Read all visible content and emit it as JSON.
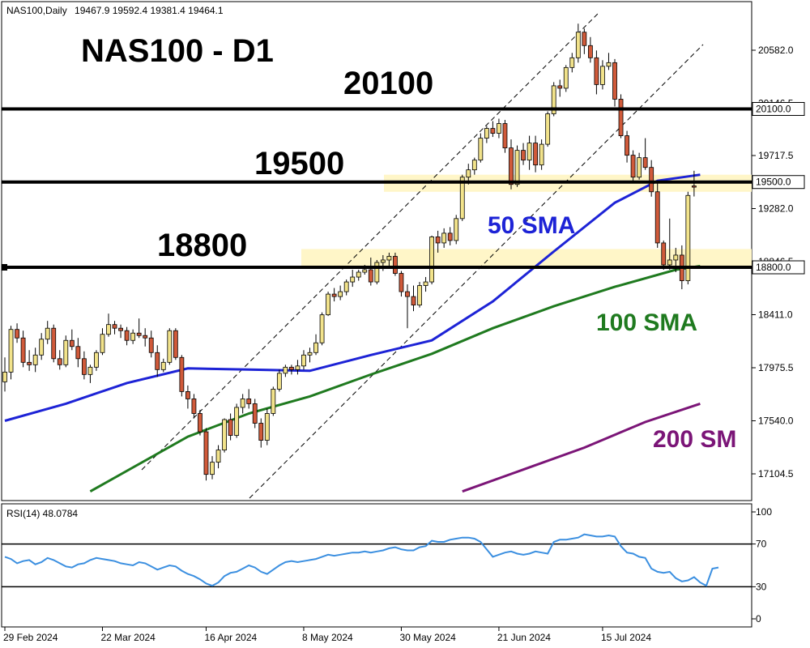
{
  "header": {
    "symbol_label": "NAS100,Daily",
    "ohlc_text": "19467.9 19592.4 19381.4 19464.1"
  },
  "annotations": {
    "title": "NAS100 - D1",
    "level_20100": "20100",
    "level_19500": "19500",
    "level_18800": "18800",
    "sma50_label": "50 SMA",
    "sma100_label": "100 SMA",
    "sma200_label": "200 SM"
  },
  "price_axis": {
    "ticks": [
      "20582.0",
      "20146.5",
      "19717.5",
      "19282.0",
      "18846.5",
      "18411.0",
      "17975.5",
      "17540.0",
      "17104.5"
    ],
    "level_boxes": [
      "20100.0",
      "19500.0",
      "18800.0"
    ]
  },
  "rsi_panel": {
    "label": "RSI(14) 48.0784",
    "ticks": [
      "100",
      "70",
      "30",
      "0"
    ]
  },
  "x_axis": {
    "labels": [
      "29 Feb 2024",
      "22 Mar 2024",
      "16 Apr 2024",
      "8 May 2024",
      "30 May 2024",
      "21 Jun 2024",
      "15 Jul 2024"
    ]
  },
  "colors": {
    "bull": "#f2e38b",
    "bear": "#d05a3a",
    "sma50": "#1d23d6",
    "sma100": "#1f7a1f",
    "sma200": "#7b1577",
    "rsi": "#3b8fe0",
    "zone": "#fff6c8"
  },
  "chart_data": [
    {
      "type": "candlestick",
      "title": "NAS100 - D1",
      "ylim": [
        16960,
        20800
      ],
      "horizontal_levels": [
        20100,
        19500,
        18800
      ],
      "support_resistance_zones": [
        [
          19420,
          19560
        ],
        [
          18800,
          18950
        ]
      ],
      "candles": [
        {
          "o": 17860,
          "h": 18060,
          "l": 17780,
          "c": 17940
        },
        {
          "o": 17940,
          "h": 18320,
          "l": 17880,
          "c": 18290
        },
        {
          "o": 18290,
          "h": 18340,
          "l": 18180,
          "c": 18220
        },
        {
          "o": 18220,
          "h": 18280,
          "l": 17980,
          "c": 18020
        },
        {
          "o": 18020,
          "h": 18120,
          "l": 17950,
          "c": 18000
        },
        {
          "o": 18000,
          "h": 18140,
          "l": 17940,
          "c": 18080
        },
        {
          "o": 18080,
          "h": 18260,
          "l": 18040,
          "c": 18210
        },
        {
          "o": 18210,
          "h": 18360,
          "l": 18170,
          "c": 18300
        },
        {
          "o": 18300,
          "h": 18330,
          "l": 18020,
          "c": 18050
        },
        {
          "o": 18050,
          "h": 18120,
          "l": 17960,
          "c": 18000
        },
        {
          "o": 18000,
          "h": 18240,
          "l": 17980,
          "c": 18200
        },
        {
          "o": 18200,
          "h": 18290,
          "l": 18120,
          "c": 18150
        },
        {
          "o": 18150,
          "h": 18220,
          "l": 17980,
          "c": 18050
        },
        {
          "o": 18050,
          "h": 18110,
          "l": 17880,
          "c": 17920
        },
        {
          "o": 17920,
          "h": 18000,
          "l": 17850,
          "c": 17980
        },
        {
          "o": 17980,
          "h": 18120,
          "l": 17950,
          "c": 18100
        },
        {
          "o": 18100,
          "h": 18300,
          "l": 18080,
          "c": 18250
        },
        {
          "o": 18250,
          "h": 18420,
          "l": 18230,
          "c": 18330
        },
        {
          "o": 18330,
          "h": 18360,
          "l": 18250,
          "c": 18300
        },
        {
          "o": 18300,
          "h": 18330,
          "l": 18220,
          "c": 18280
        },
        {
          "o": 18280,
          "h": 18310,
          "l": 18160,
          "c": 18200
        },
        {
          "o": 18200,
          "h": 18290,
          "l": 18170,
          "c": 18260
        },
        {
          "o": 18260,
          "h": 18380,
          "l": 18220,
          "c": 18240
        },
        {
          "o": 18240,
          "h": 18300,
          "l": 18150,
          "c": 18220
        },
        {
          "o": 18220,
          "h": 18280,
          "l": 18060,
          "c": 18100
        },
        {
          "o": 18100,
          "h": 18160,
          "l": 17900,
          "c": 17960
        },
        {
          "o": 17960,
          "h": 18050,
          "l": 17940,
          "c": 18020
        },
        {
          "o": 18020,
          "h": 18300,
          "l": 18000,
          "c": 18280
        },
        {
          "o": 18280,
          "h": 18300,
          "l": 18040,
          "c": 18060
        },
        {
          "o": 18060,
          "h": 18080,
          "l": 17740,
          "c": 17780
        },
        {
          "o": 17780,
          "h": 17830,
          "l": 17640,
          "c": 17720
        },
        {
          "o": 17720,
          "h": 17760,
          "l": 17560,
          "c": 17600
        },
        {
          "o": 17600,
          "h": 17630,
          "l": 17420,
          "c": 17450
        },
        {
          "o": 17450,
          "h": 17480,
          "l": 17050,
          "c": 17100
        },
        {
          "o": 17100,
          "h": 17250,
          "l": 17060,
          "c": 17200
        },
        {
          "o": 17200,
          "h": 17340,
          "l": 17150,
          "c": 17300
        },
        {
          "o": 17300,
          "h": 17560,
          "l": 17280,
          "c": 17550
        },
        {
          "o": 17550,
          "h": 17600,
          "l": 17380,
          "c": 17420
        },
        {
          "o": 17420,
          "h": 17680,
          "l": 17400,
          "c": 17650
        },
        {
          "o": 17650,
          "h": 17760,
          "l": 17600,
          "c": 17720
        },
        {
          "o": 17720,
          "h": 17800,
          "l": 17640,
          "c": 17680
        },
        {
          "o": 17680,
          "h": 17720,
          "l": 17480,
          "c": 17520
        },
        {
          "o": 17520,
          "h": 17560,
          "l": 17320,
          "c": 17380
        },
        {
          "o": 17380,
          "h": 17640,
          "l": 17340,
          "c": 17600
        },
        {
          "o": 17600,
          "h": 17820,
          "l": 17580,
          "c": 17800
        },
        {
          "o": 17800,
          "h": 17960,
          "l": 17780,
          "c": 17930
        },
        {
          "o": 17930,
          "h": 18000,
          "l": 17900,
          "c": 17980
        },
        {
          "o": 17980,
          "h": 18000,
          "l": 17920,
          "c": 17960
        },
        {
          "o": 17960,
          "h": 18040,
          "l": 17920,
          "c": 17990
        },
        {
          "o": 17990,
          "h": 18120,
          "l": 17960,
          "c": 18080
        },
        {
          "o": 18080,
          "h": 18140,
          "l": 18020,
          "c": 18100
        },
        {
          "o": 18100,
          "h": 18250,
          "l": 18080,
          "c": 18180
        },
        {
          "o": 18180,
          "h": 18430,
          "l": 18160,
          "c": 18410
        },
        {
          "o": 18410,
          "h": 18600,
          "l": 18400,
          "c": 18580
        },
        {
          "o": 18580,
          "h": 18630,
          "l": 18520,
          "c": 18560
        },
        {
          "o": 18560,
          "h": 18650,
          "l": 18530,
          "c": 18600
        },
        {
          "o": 18600,
          "h": 18700,
          "l": 18570,
          "c": 18680
        },
        {
          "o": 18680,
          "h": 18780,
          "l": 18640,
          "c": 18720
        },
        {
          "o": 18720,
          "h": 18780,
          "l": 18690,
          "c": 18760
        },
        {
          "o": 18760,
          "h": 18820,
          "l": 18740,
          "c": 18780
        },
        {
          "o": 18780,
          "h": 18880,
          "l": 18650,
          "c": 18680
        },
        {
          "o": 18680,
          "h": 18860,
          "l": 18660,
          "c": 18840
        },
        {
          "o": 18840,
          "h": 18900,
          "l": 18770,
          "c": 18860
        },
        {
          "o": 18860,
          "h": 18920,
          "l": 18800,
          "c": 18890
        },
        {
          "o": 18890,
          "h": 18920,
          "l": 18730,
          "c": 18750
        },
        {
          "o": 18750,
          "h": 18770,
          "l": 18560,
          "c": 18600
        },
        {
          "o": 18600,
          "h": 18660,
          "l": 18300,
          "c": 18560
        },
        {
          "o": 18560,
          "h": 18650,
          "l": 18440,
          "c": 18490
        },
        {
          "o": 18490,
          "h": 18680,
          "l": 18470,
          "c": 18650
        },
        {
          "o": 18650,
          "h": 18720,
          "l": 18600,
          "c": 18680
        },
        {
          "o": 18680,
          "h": 19060,
          "l": 18660,
          "c": 19050
        },
        {
          "o": 19050,
          "h": 19100,
          "l": 18920,
          "c": 19000
        },
        {
          "o": 19000,
          "h": 19120,
          "l": 18960,
          "c": 19080
        },
        {
          "o": 19080,
          "h": 19130,
          "l": 18980,
          "c": 19020
        },
        {
          "o": 19020,
          "h": 19230,
          "l": 18990,
          "c": 19200
        },
        {
          "o": 19200,
          "h": 19560,
          "l": 19180,
          "c": 19540
        },
        {
          "o": 19540,
          "h": 19650,
          "l": 19480,
          "c": 19600
        },
        {
          "o": 19600,
          "h": 19700,
          "l": 19560,
          "c": 19680
        },
        {
          "o": 19680,
          "h": 19900,
          "l": 19660,
          "c": 19860
        },
        {
          "o": 19860,
          "h": 19960,
          "l": 19820,
          "c": 19940
        },
        {
          "o": 19940,
          "h": 20000,
          "l": 19870,
          "c": 19900
        },
        {
          "o": 19900,
          "h": 20020,
          "l": 19860,
          "c": 19980
        },
        {
          "o": 19980,
          "h": 20010,
          "l": 19740,
          "c": 19780
        },
        {
          "o": 19780,
          "h": 19850,
          "l": 19440,
          "c": 19480
        },
        {
          "o": 19480,
          "h": 19800,
          "l": 19460,
          "c": 19760
        },
        {
          "o": 19760,
          "h": 19820,
          "l": 19640,
          "c": 19680
        },
        {
          "o": 19680,
          "h": 19880,
          "l": 19600,
          "c": 19820
        },
        {
          "o": 19820,
          "h": 19880,
          "l": 19580,
          "c": 19640
        },
        {
          "o": 19640,
          "h": 19850,
          "l": 19600,
          "c": 19810
        },
        {
          "o": 19810,
          "h": 20080,
          "l": 19790,
          "c": 20060
        },
        {
          "o": 20060,
          "h": 20320,
          "l": 20040,
          "c": 20290
        },
        {
          "o": 20290,
          "h": 20340,
          "l": 20200,
          "c": 20270
        },
        {
          "o": 20270,
          "h": 20460,
          "l": 20240,
          "c": 20440
        },
        {
          "o": 20440,
          "h": 20560,
          "l": 20400,
          "c": 20520
        },
        {
          "o": 20520,
          "h": 20800,
          "l": 20480,
          "c": 20730
        },
        {
          "o": 20730,
          "h": 20760,
          "l": 20550,
          "c": 20620
        },
        {
          "o": 20620,
          "h": 20690,
          "l": 20480,
          "c": 20520
        },
        {
          "o": 20520,
          "h": 20580,
          "l": 20220,
          "c": 20300
        },
        {
          "o": 20300,
          "h": 20500,
          "l": 20260,
          "c": 20450
        },
        {
          "o": 20450,
          "h": 20560,
          "l": 20420,
          "c": 20480
        },
        {
          "o": 20480,
          "h": 20510,
          "l": 20120,
          "c": 20180
        },
        {
          "o": 20180,
          "h": 20220,
          "l": 19860,
          "c": 19880
        },
        {
          "o": 19880,
          "h": 19920,
          "l": 19660,
          "c": 19720
        },
        {
          "o": 19720,
          "h": 19760,
          "l": 19500,
          "c": 19540
        },
        {
          "o": 19540,
          "h": 19740,
          "l": 19520,
          "c": 19700
        },
        {
          "o": 19700,
          "h": 19860,
          "l": 19600,
          "c": 19620
        },
        {
          "o": 19620,
          "h": 19680,
          "l": 19380,
          "c": 19420
        },
        {
          "o": 19420,
          "h": 19500,
          "l": 18960,
          "c": 19000
        },
        {
          "o": 19000,
          "h": 19020,
          "l": 18780,
          "c": 18820
        },
        {
          "o": 18820,
          "h": 19200,
          "l": 18780,
          "c": 18860
        },
        {
          "o": 18860,
          "h": 18960,
          "l": 18760,
          "c": 18900
        },
        {
          "o": 18900,
          "h": 18980,
          "l": 18620,
          "c": 18690
        },
        {
          "o": 18690,
          "h": 19420,
          "l": 18660,
          "c": 19390
        },
        {
          "o": 19467.9,
          "h": 19592.4,
          "l": 19381.4,
          "c": 19464.1
        }
      ],
      "sma50": [
        {
          "i": 0,
          "v": 17540
        },
        {
          "i": 10,
          "v": 17680
        },
        {
          "i": 20,
          "v": 17850
        },
        {
          "i": 30,
          "v": 17970
        },
        {
          "i": 40,
          "v": 17960
        },
        {
          "i": 50,
          "v": 17950
        },
        {
          "i": 60,
          "v": 18080
        },
        {
          "i": 70,
          "v": 18200
        },
        {
          "i": 80,
          "v": 18520
        },
        {
          "i": 90,
          "v": 18930
        },
        {
          "i": 100,
          "v": 19330
        },
        {
          "i": 107,
          "v": 19510
        },
        {
          "i": 114,
          "v": 19560
        }
      ],
      "sma100": [
        {
          "i": 14,
          "v": 16960
        },
        {
          "i": 30,
          "v": 17410
        },
        {
          "i": 40,
          "v": 17600
        },
        {
          "i": 50,
          "v": 17740
        },
        {
          "i": 60,
          "v": 17920
        },
        {
          "i": 70,
          "v": 18090
        },
        {
          "i": 80,
          "v": 18300
        },
        {
          "i": 90,
          "v": 18480
        },
        {
          "i": 100,
          "v": 18640
        },
        {
          "i": 110,
          "v": 18780
        },
        {
          "i": 114,
          "v": 18810
        }
      ],
      "sma200": [
        {
          "i": 75,
          "v": 16960
        },
        {
          "i": 85,
          "v": 17140
        },
        {
          "i": 95,
          "v": 17320
        },
        {
          "i": 105,
          "v": 17530
        },
        {
          "i": 114,
          "v": 17680
        }
      ]
    },
    {
      "type": "line",
      "title": "RSI(14) 48.0784",
      "ylim": [
        0,
        100
      ],
      "horizontal_levels": [
        70,
        30
      ],
      "values": [
        58,
        56,
        52,
        54,
        55,
        51,
        53,
        57,
        55,
        52,
        49,
        48,
        51,
        52,
        55,
        57,
        56,
        55,
        54,
        52,
        51,
        50,
        53,
        52,
        49,
        46,
        48,
        50,
        49,
        45,
        42,
        40,
        37,
        33,
        31,
        34,
        40,
        43,
        44,
        47,
        50,
        48,
        44,
        42,
        46,
        50,
        53,
        54,
        53,
        54,
        55,
        56,
        58,
        60,
        59,
        60,
        61,
        62,
        62,
        63,
        62,
        63,
        64,
        66,
        67,
        65,
        64,
        64,
        67,
        68,
        73,
        72,
        72,
        74,
        75,
        76,
        76,
        75,
        72,
        65,
        58,
        60,
        62,
        63,
        61,
        60,
        61,
        63,
        62,
        61,
        72,
        74,
        74,
        75,
        76,
        79,
        78,
        77,
        77,
        78,
        77,
        68,
        62,
        61,
        58,
        57,
        47,
        44,
        43,
        44,
        38,
        35,
        36,
        39,
        34,
        31,
        47,
        48
      ]
    }
  ]
}
